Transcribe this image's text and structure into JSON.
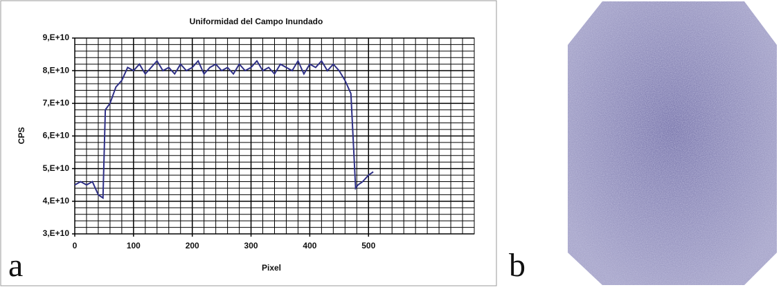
{
  "chart_data": {
    "type": "line",
    "title": "Uniformidad del Campo Inundado",
    "xlabel": "Pixel",
    "ylabel": "CPS",
    "panel_labels": [
      "a",
      "b"
    ],
    "x": [
      0,
      10,
      20,
      30,
      40,
      48,
      52,
      60,
      70,
      80,
      90,
      100,
      110,
      120,
      130,
      140,
      150,
      160,
      170,
      180,
      190,
      200,
      210,
      220,
      230,
      240,
      250,
      260,
      270,
      280,
      290,
      300,
      310,
      320,
      330,
      340,
      350,
      360,
      370,
      380,
      390,
      400,
      410,
      420,
      430,
      440,
      450,
      460,
      470,
      478,
      482,
      490,
      500,
      508
    ],
    "series": [
      {
        "name": "CPS",
        "color": "#2e2f86",
        "values": [
          45000000000.0,
          46000000000.0,
          45000000000.0,
          46000000000.0,
          42000000000.0,
          41000000000.0,
          68000000000.0,
          70000000000.0,
          75000000000.0,
          77000000000.0,
          81000000000.0,
          80000000000.0,
          82000000000.0,
          79000000000.0,
          81000000000.0,
          83000000000.0,
          80000000000.0,
          81000000000.0,
          79000000000.0,
          82000000000.0,
          80000000000.0,
          81000000000.0,
          83000000000.0,
          79000000000.0,
          81000000000.0,
          82000000000.0,
          80000000000.0,
          81000000000.0,
          79000000000.0,
          82000000000.0,
          80000000000.0,
          81000000000.0,
          83000000000.0,
          80000000000.0,
          81000000000.0,
          79000000000.0,
          82000000000.0,
          81000000000.0,
          80000000000.0,
          83000000000.0,
          79000000000.0,
          82000000000.0,
          81000000000.0,
          83000000000.0,
          80000000000.0,
          82000000000.0,
          80000000000.0,
          77000000000.0,
          73000000000.0,
          44000000000.0,
          45000000000.0,
          46000000000.0,
          48000000000.0,
          49000000000.0
        ]
      }
    ],
    "xlim": [
      0,
      680
    ],
    "ylim": [
      30000000000.0,
      90000000000.0
    ],
    "xticks": [
      0,
      100,
      200,
      300,
      400,
      500
    ],
    "yticks": [
      {
        "value": 30000000000.0,
        "label": "3,E+10"
      },
      {
        "value": 40000000000.0,
        "label": "4,E+10"
      },
      {
        "value": 50000000000.0,
        "label": "5,E+10"
      },
      {
        "value": 60000000000.0,
        "label": "6,E+10"
      },
      {
        "value": 70000000000.0,
        "label": "7,E+10"
      },
      {
        "value": 80000000000.0,
        "label": "8,E+10"
      },
      {
        "value": 90000000000.0,
        "label": "9,E+10"
      }
    ],
    "minor_xgrid": [
      20,
      40,
      60,
      80,
      120,
      140,
      160,
      180,
      220,
      240,
      260,
      280,
      320,
      340,
      360,
      380,
      420,
      440,
      460,
      480,
      520,
      540,
      560,
      580,
      600,
      620,
      640,
      660,
      680
    ],
    "minor_ygrid": [
      32000000000.0,
      34000000000.0,
      36000000000.0,
      38000000000.0,
      42000000000.0,
      44000000000.0,
      46000000000.0,
      48000000000.0,
      52000000000.0,
      54000000000.0,
      56000000000.0,
      58000000000.0,
      62000000000.0,
      64000000000.0,
      66000000000.0,
      68000000000.0,
      72000000000.0,
      74000000000.0,
      76000000000.0,
      78000000000.0,
      82000000000.0,
      84000000000.0,
      86000000000.0,
      88000000000.0
    ],
    "grid": true
  }
}
